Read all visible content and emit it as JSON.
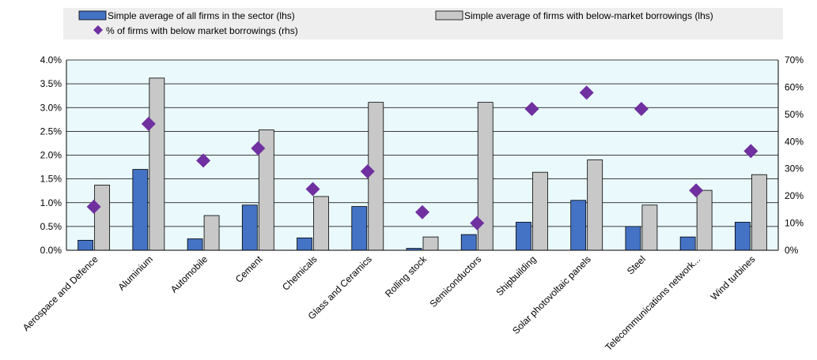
{
  "chart_data": {
    "type": "bar",
    "title": "",
    "xlabel": "",
    "ylabel": "",
    "categories": [
      "Aerospace and Defence",
      "Aluminium",
      "Automobile",
      "Cement",
      "Chemicals",
      "Glass and Ceramics",
      "Rolling stock",
      "Semiconductors",
      "Shipbuilding",
      "Solar photovoltaic panels",
      "Steel",
      "Telecommunications network...",
      "Wind turbines"
    ],
    "series": [
      {
        "name": "Simple average of all firms in the sector (lhs)",
        "type": "bar",
        "axis": "left",
        "color": "#4472C4",
        "values": [
          0.0021,
          0.017,
          0.0024,
          0.0095,
          0.0026,
          0.0092,
          0.0004,
          0.0033,
          0.0059,
          0.0105,
          0.005,
          0.0028,
          0.0059
        ]
      },
      {
        "name": "Simple average of firms with below-market borrowings (lhs)",
        "type": "bar",
        "axis": "left",
        "color": "#C8C8C8",
        "values": [
          0.0137,
          0.0362,
          0.0073,
          0.0253,
          0.0113,
          0.0311,
          0.0028,
          0.0311,
          0.0164,
          0.019,
          0.0095,
          0.0126,
          0.0159
        ]
      },
      {
        "name": "% of firms with below market borrowings (rhs)",
        "type": "scatter",
        "axis": "right",
        "color": "#7030A0",
        "values": [
          0.16,
          0.465,
          0.33,
          0.375,
          0.225,
          0.29,
          0.14,
          0.1,
          0.52,
          0.58,
          0.52,
          0.22,
          0.365
        ]
      }
    ],
    "ylim_left": [
      0,
      0.04
    ],
    "ylim_right": [
      0,
      0.7
    ],
    "yticks_left": [
      "0.0%",
      "0.5%",
      "1.0%",
      "1.5%",
      "2.0%",
      "2.5%",
      "3.0%",
      "3.5%",
      "4.0%"
    ],
    "yticks_right": [
      "0%",
      "10%",
      "20%",
      "30%",
      "40%",
      "50%",
      "60%",
      "70%"
    ],
    "grid": "horizontal",
    "legend_position": "top",
    "plot_background": "#EAF9FC"
  }
}
